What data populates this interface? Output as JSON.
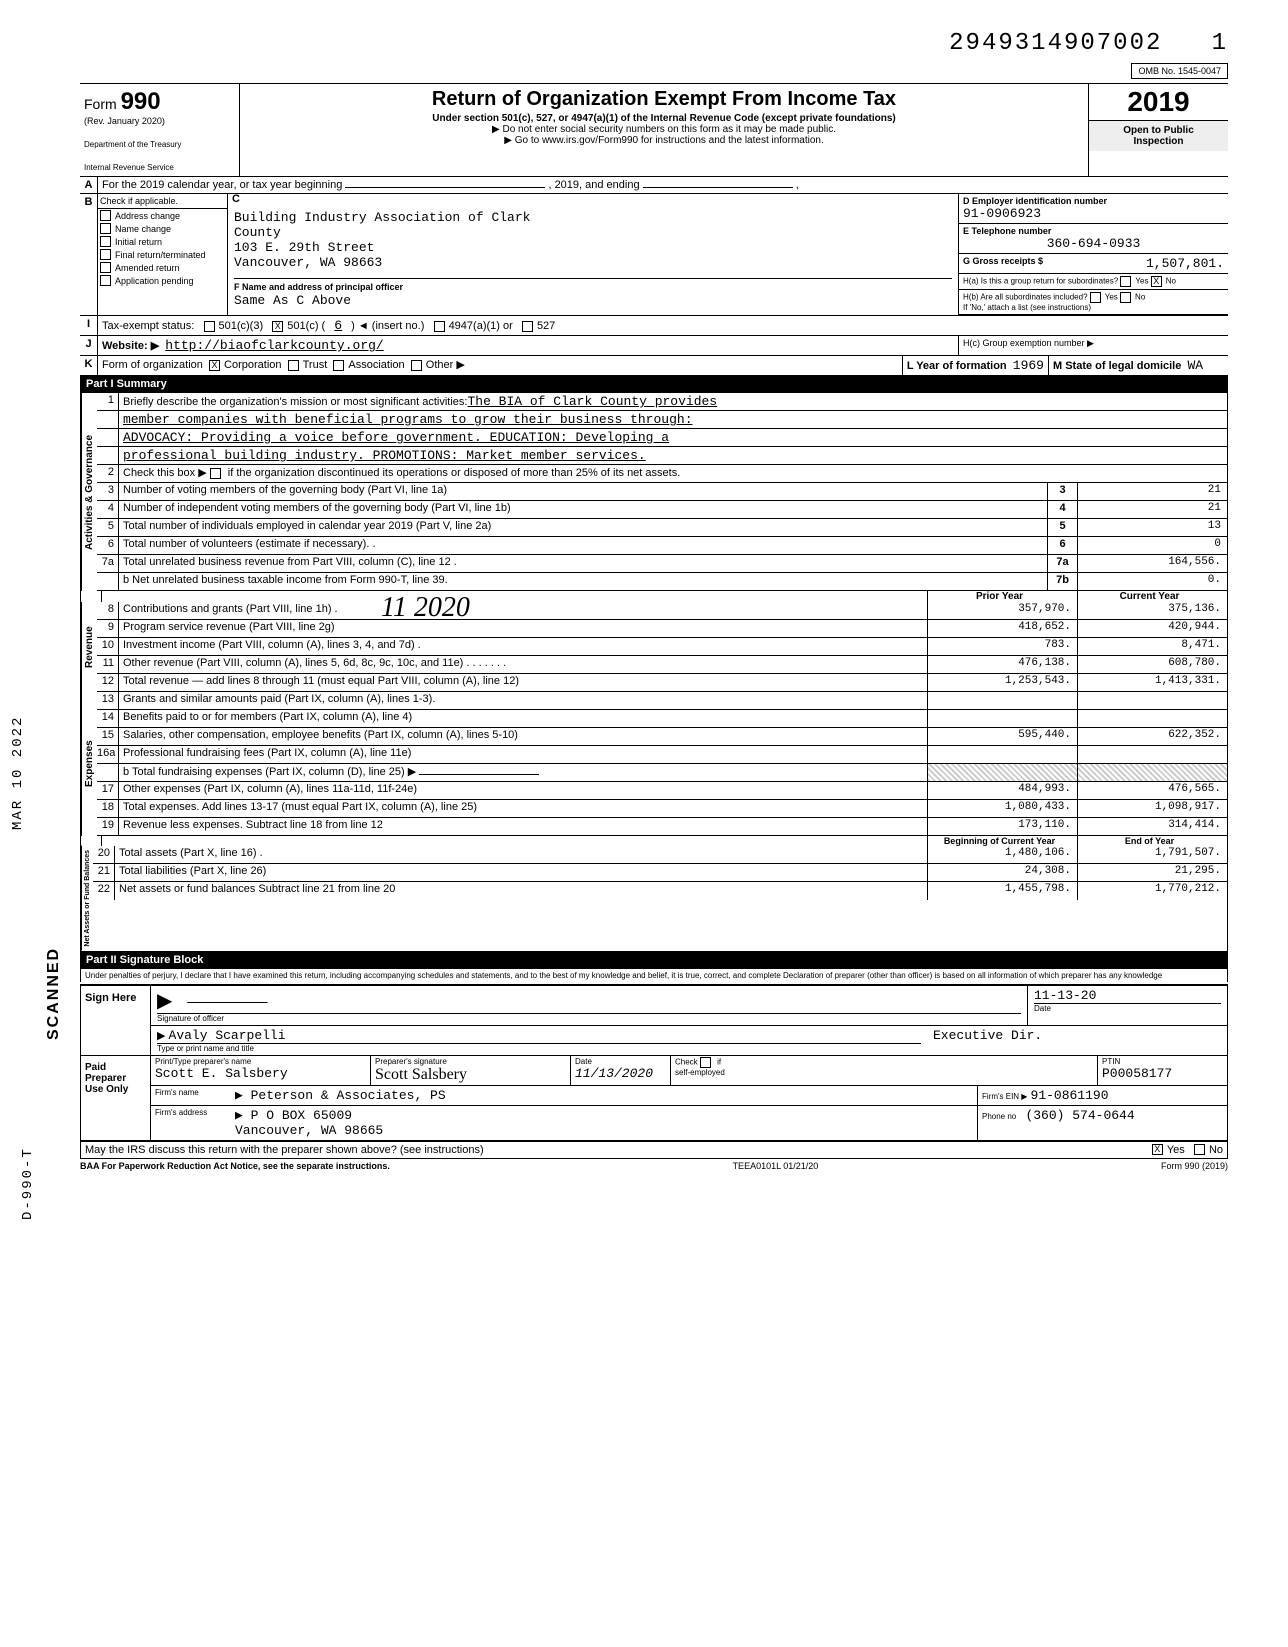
{
  "top_stamp_number": "2949314907002",
  "omb": "OMB No. 1545-0047",
  "form_label": "Form",
  "form_number": "990",
  "rev": "(Rev. January 2020)",
  "dept1": "Department of the Treasury",
  "dept2": "Internal Revenue Service",
  "title": "Return of Organization Exempt From Income Tax",
  "subtitle": "Under section 501(c), 527, or 4947(a)(1) of the Internal Revenue Code (except private foundations)",
  "arrow1": "▶ Do not enter social security numbers on this form as it may be made public.",
  "arrow2": "▶ Go to www.irs.gov/Form990 for instructions and the latest information.",
  "year": "2019",
  "open_public1": "Open to Public",
  "open_public2": "Inspection",
  "line_a": "For the 2019 calendar year, or tax year beginning",
  "line_a_mid": ", 2019, and ending",
  "b_header": "Check if applicable.",
  "b_items": [
    "Address change",
    "Name change",
    "Initial return",
    "Final return/terminated",
    "Amended return",
    "Application pending"
  ],
  "c_label": "C",
  "org_name": "Building Industry Association of Clark",
  "org_name2": "County",
  "org_addr1": "103 E. 29th Street",
  "org_addr2": "Vancouver, WA 98663",
  "d_label": "D  Employer identification number",
  "ein": "91-0906923",
  "e_label": "E  Telephone number",
  "phone": "360-694-0933",
  "g_label": "G  Gross receipts $",
  "gross_receipts": "1,507,801.",
  "f_label": "F  Name and address of principal officer",
  "f_value": "Same As C Above",
  "h_a": "H(a) Is this a group return for subordinates?",
  "h_b": "H(b) Are all subordinates included?",
  "h_b_note": "If 'No,' attach a list (see instructions)",
  "h_c": "H(c) Group exemption number ▶",
  "yes": "Yes",
  "no": "No",
  "i_label": "Tax-exempt status:",
  "i_opts": [
    "501(c)(3)",
    "501(c) (",
    "4947(a)(1) or",
    "527"
  ],
  "i_insert": ") ◄  (insert no.)",
  "i_checked_val": "6",
  "j_label": "Website: ▶",
  "website": "http://biaofclarkcounty.org/",
  "k_label": "Form of organization",
  "k_opts": [
    "Corporation",
    "Trust",
    "Association",
    "Other ▶"
  ],
  "l_label": "L Year of formation",
  "l_val": "1969",
  "m_label": "M State of legal domicile",
  "m_val": "WA",
  "part1_title": "Part I    Summary",
  "briefly": "Briefly describe the organization's mission or most significant activities:",
  "mission1": "The BIA of Clark County provides",
  "mission2": "member companies with beneficial programs to grow their business through:",
  "mission3": "ADVOCACY:  Providing a voice before government.  EDUCATION:  Developing a",
  "mission4": "professional building industry.  PROMOTIONS:  Market member services.",
  "line2": "Check this box ▶     if the organization discontinued its operations or disposed of more than 25% of its net assets.",
  "lines_ag": [
    {
      "n": "3",
      "d": "Number of voting members of the governing body (Part VI, line 1a)",
      "lbl": "3",
      "v": "21"
    },
    {
      "n": "4",
      "d": "Number of independent voting members of the governing body (Part VI, line 1b)",
      "lbl": "4",
      "v": "21"
    },
    {
      "n": "5",
      "d": "Total number of individuals employed in calendar year 2019 (Part V, line 2a)",
      "lbl": "5",
      "v": "13"
    },
    {
      "n": "6",
      "d": "Total number of volunteers (estimate if necessary). .",
      "lbl": "6",
      "v": "0"
    },
    {
      "n": "7a",
      "d": "Total unrelated business revenue from Part VIII, column (C), line 12 .",
      "lbl": "7a",
      "v": "164,556."
    },
    {
      "n": "",
      "d": "b Net unrelated business taxable income from Form 990-T, line 39.",
      "lbl": "7b",
      "v": "0."
    }
  ],
  "vert_ag": "Activities & Governance",
  "prior_year_hdr": "Prior Year",
  "current_year_hdr": "Current Year",
  "vert_rev": "Revenue",
  "rev_lines": [
    {
      "n": "8",
      "d": "Contributions and grants (Part VIII, line 1h) .",
      "py": "357,970.",
      "cy": "375,136."
    },
    {
      "n": "9",
      "d": "Program service revenue (Part VIII, line 2g)",
      "py": "418,652.",
      "cy": "420,944."
    },
    {
      "n": "10",
      "d": "Investment income (Part VIII, column (A), lines 3, 4, and 7d) .",
      "py": "783.",
      "cy": "8,471."
    },
    {
      "n": "11",
      "d": "Other revenue (Part VIII, column (A), lines 5, 6d, 8c, 9c, 10c, and 11e)  . . . . . . .",
      "py": "476,138.",
      "cy": "608,780."
    },
    {
      "n": "12",
      "d": "Total revenue — add lines 8 through 11 (must equal Part VIII, column (A), line 12)",
      "py": "1,253,543.",
      "cy": "1,413,331."
    }
  ],
  "vert_exp": "Expenses",
  "exp_lines": [
    {
      "n": "13",
      "d": "Grants and similar amounts paid (Part IX, column (A), lines 1-3).",
      "py": "",
      "cy": ""
    },
    {
      "n": "14",
      "d": "Benefits paid to or for members (Part IX, column (A), line 4)",
      "py": "",
      "cy": ""
    },
    {
      "n": "15",
      "d": "Salaries, other compensation, employee benefits (Part IX, column (A), lines 5-10)",
      "py": "595,440.",
      "cy": "622,352."
    },
    {
      "n": "16a",
      "d": "Professional fundraising fees (Part IX, column (A), line 11e)",
      "py": "",
      "cy": ""
    }
  ],
  "exp_b": "b Total fundraising expenses (Part IX, column (D), line 25) ▶",
  "exp_lines2": [
    {
      "n": "17",
      "d": "Other expenses (Part IX, column (A), lines 11a-11d, 11f-24e)",
      "py": "484,993.",
      "cy": "476,565."
    },
    {
      "n": "18",
      "d": "Total expenses. Add lines 13-17 (must equal Part IX, column (A), line 25)",
      "py": "1,080,433.",
      "cy": "1,098,917."
    },
    {
      "n": "19",
      "d": "Revenue less expenses. Subtract line 18 from line 12",
      "py": "173,110.",
      "cy": "314,414."
    }
  ],
  "vert_na": "Net Assets or Fund Balances",
  "boy_hdr": "Beginning of Current Year",
  "eoy_hdr": "End of Year",
  "na_lines": [
    {
      "n": "20",
      "d": "Total assets (Part X, line 16)  .",
      "py": "1,480,106.",
      "cy": "1,791,507."
    },
    {
      "n": "21",
      "d": "Total liabilities (Part X, line 26)",
      "py": "24,308.",
      "cy": "21,295."
    },
    {
      "n": "22",
      "d": "Net assets or fund balances  Subtract line 21 from line 20",
      "py": "1,455,798.",
      "cy": "1,770,212."
    }
  ],
  "part2_title": "Part II    Signature Block",
  "perjury": "Under penalties of perjury, I declare that I have examined this return, including accompanying schedules and statements, and to the best of my knowledge and belief, it is true, correct, and complete  Declaration of preparer (other than officer) is based on all information of which preparer has any knowledge",
  "sign_here": "Sign Here",
  "sig_officer_lbl": "Signature of officer",
  "date_lbl": "Date",
  "officer_name": "Avaly Scarpelli",
  "officer_title": "Executive Dir.",
  "name_title_lbl": "Type or print name and title",
  "paid_preparer": "Paid Preparer Use Only",
  "prep_name_lbl": "Print/Type preparer's name",
  "prep_name": "Scott E. Salsbery",
  "prep_sig_lbl": "Preparer's signature",
  "prep_date": "11/13/2020",
  "check_lbl": "Check",
  "if_lbl": "if",
  "self_emp": "self-employed",
  "ptin_lbl": "PTIN",
  "ptin": "P00058177",
  "firm_name_lbl": "Firm's name",
  "firm_name": "▶ Peterson & Associates, PS",
  "firm_addr_lbl": "Firm's address",
  "firm_addr1": "▶ P O BOX 65009",
  "firm_addr2": "Vancouver, WA 98665",
  "firm_ein_lbl": "Firm's EIN ▶",
  "firm_ein": "91-0861190",
  "phone_no_lbl": "Phone no",
  "firm_phone": "(360) 574-0644",
  "may_irs": "May the IRS discuss this return with the preparer shown above? (see instructions)",
  "baa": "BAA  For Paperwork Reduction Act Notice, see the separate instructions.",
  "teea": "TEEA0101L 01/21/20",
  "form_foot": "Form 990 (2019)",
  "received_stamp_year": "2020",
  "sideways1": "MAR 10 2022",
  "sideways2": "SCANNED",
  "sideways3": "D-990-T",
  "sig_date_handwritten": "11-13-20"
}
